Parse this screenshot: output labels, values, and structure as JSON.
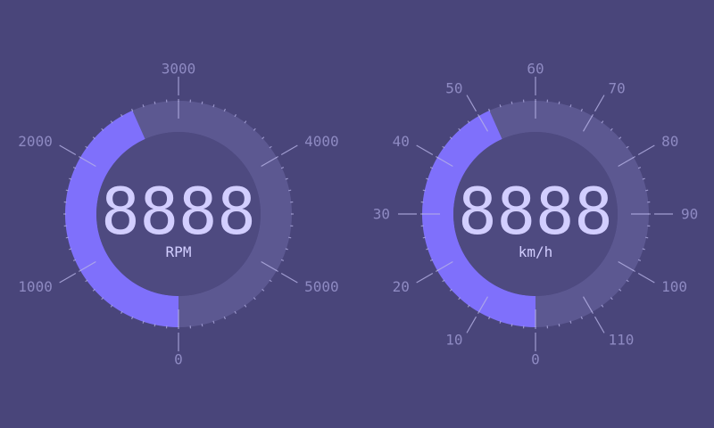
{
  "colors": {
    "background": "#49457a",
    "track": "#5c5891",
    "fill": "#7f70fb",
    "center": "#4e4a80",
    "tick": "#b6b2e6",
    "tick_label": "#8e8ac2",
    "readout": "#d2ceff"
  },
  "gauges": [
    {
      "id": "rpm",
      "readout": "8888",
      "unit": "RPM",
      "scale_min": 0,
      "scale_max": 6000,
      "value": 2600,
      "fill_direction": "clockwise",
      "labels": [
        "0",
        "1000",
        "2000",
        "3000",
        "4000",
        "5000"
      ]
    },
    {
      "id": "speed",
      "readout": "8888",
      "unit": "km/h",
      "scale_min": 0,
      "scale_max": 120,
      "value": 52,
      "fill_direction": "clockwise",
      "labels": [
        "0",
        "10",
        "20",
        "30",
        "40",
        "50",
        "60",
        "70",
        "80",
        "90",
        "100",
        "110"
      ]
    }
  ]
}
